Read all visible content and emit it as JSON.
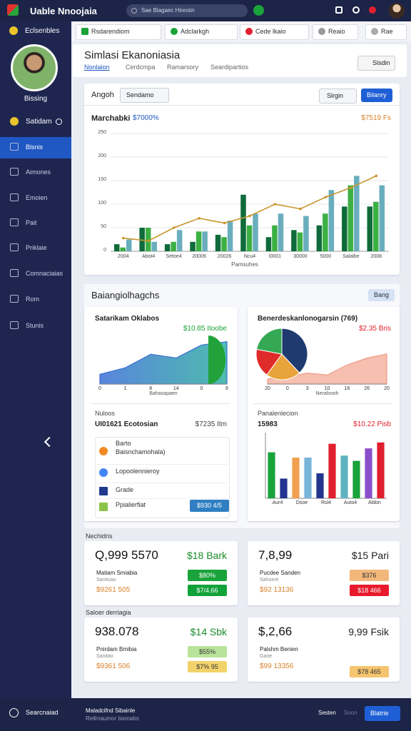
{
  "topbar": {
    "title": "Uable Nnoojaia",
    "search": "Sae Blagaec Hireoiin"
  },
  "sidebar": {
    "brand": "Eclsenbles",
    "user": "Bissing",
    "status": "Satidam",
    "menu": [
      "Blsnis",
      "Aimones",
      "Emoien",
      "Pait",
      "Priklaie",
      "Comnaciaias",
      "Rom",
      "Stunis"
    ],
    "footer": "Searcnaiad"
  },
  "tabs": [
    "Rsdarendiom",
    "Adclarkgh",
    "Cede lkaio",
    "Reaio",
    "Rae"
  ],
  "header": {
    "title": "Simlasi Ekanoniasia",
    "tabs": [
      "Nonlaion",
      "Cerdcmpa",
      "Ramarsory",
      "Seardipartios"
    ],
    "button": "Slsdin"
  },
  "main_chart": {
    "type": "bar",
    "toolbar": {
      "label": "Angoh",
      "dropdown": "Sendamo",
      "filter": "Slrgin",
      "button": "Bilanry"
    },
    "title": "Marchabki",
    "subtitle": "$7000%",
    "annotation": "$7519 Fs",
    "x_title": "Pamsuhes",
    "categories": [
      "2004",
      "Abot4",
      "Setoe4",
      "20009",
      "20026",
      "Ncu4",
      "l0001",
      "30000",
      "5000",
      "Salalbe",
      "2008"
    ],
    "ylim": [
      0,
      250
    ],
    "yticks": [
      0,
      50,
      100,
      150,
      200,
      250
    ],
    "grid": true,
    "series": [
      {
        "type": "bar",
        "color": "#0f6b3a",
        "values": [
          15,
          50,
          15,
          20,
          35,
          120,
          30,
          45,
          55,
          95,
          95
        ]
      },
      {
        "type": "bar",
        "color": "#3cb043",
        "values": [
          8,
          50,
          20,
          42,
          30,
          55,
          55,
          40,
          80,
          140,
          105
        ]
      },
      {
        "type": "bar",
        "color": "#6aaebd",
        "values": [
          25,
          20,
          45,
          42,
          65,
          80,
          80,
          75,
          130,
          160,
          140
        ]
      },
      {
        "type": "line",
        "color": "#c9962e",
        "values": [
          28,
          22,
          50,
          70,
          60,
          75,
          100,
          90,
          115,
          135,
          160
        ]
      }
    ]
  },
  "overview": {
    "title": "Baiangiolhagchs",
    "button": "Bang",
    "left": {
      "title": "Satarikam Oklabos",
      "value": "$10.85 Itoobe",
      "chart": {
        "type": "area",
        "categories": [
          "0",
          "1",
          "8",
          "14",
          "0",
          "8"
        ],
        "x_title": "Bahasapaen",
        "values": [
          18,
          30,
          55,
          48,
          72,
          78
        ],
        "ylim": [
          0,
          100
        ],
        "color": "#3b6fd6"
      }
    },
    "right": {
      "title": "Benerdeskanlonogarsin (769)",
      "value": "$2.35 Bris",
      "pie": {
        "type": "pie",
        "values": [
          38,
          22,
          18,
          22
        ],
        "colors": [
          "#1f3a6e",
          "#e8a33a",
          "#e02b2b",
          "#34a853"
        ]
      },
      "chart": {
        "type": "area",
        "categories": [
          "20",
          "0",
          "3",
          "10",
          "16",
          "26",
          "20"
        ],
        "x_title": "Neralsooh",
        "values": [
          10,
          14,
          22,
          18,
          38,
          52,
          60
        ],
        "ylim": [
          0,
          100
        ],
        "color": "#ef9a85"
      }
    },
    "list": {
      "header": "Nuloos",
      "name": "UI01621 Ecotosian",
      "amount": "$7235 Itm",
      "items": [
        "Barto",
        "Baisnchamohala)",
        "Lopoolennieroy",
        "Grade",
        "Ppialierfiat"
      ],
      "button": "$930 4/5"
    },
    "bars": {
      "header": "Panalenlecion",
      "value": "15983",
      "amount": "$10.22 Pisb",
      "chart": {
        "type": "bar",
        "categories": [
          "Aur4",
          null,
          "Dsoe",
          null,
          "Rsl4",
          null,
          "Auto4",
          null,
          "Aldon",
          null
        ],
        "values": [
          70,
          30,
          62,
          62,
          38,
          83,
          65,
          57,
          76,
          85
        ],
        "colors": [
          "#1aa33a",
          "#23358f",
          "#f0a050",
          "#79b4d9",
          "#23358f",
          "#e0202e",
          "#5fb3c0",
          "#1aa33a",
          "#8a4fc9",
          "#e0202e"
        ],
        "ylim": [
          0,
          100
        ]
      }
    }
  },
  "kpis": [
    {
      "title": "Nechidris",
      "cards": [
        {
          "value": "Q,999 5570",
          "delta": "$18 Bark",
          "name": "Matiam Smiabia",
          "sub": "Sanitoao",
          "amount": "$9261 505",
          "badges": [
            "$80%",
            "$7/4.66"
          ],
          "badge_colors": [
            "#1aa33a",
            "#12a23a"
          ]
        },
        {
          "value": "7,8,99",
          "delta": "$15 Pari",
          "name": "Pucdee Sanden",
          "sub": "Sahoere",
          "amount": "$92 13136",
          "badges": [
            "$376",
            "$18 466"
          ],
          "badge_colors": [
            "#f2b77a",
            "#e8192c"
          ]
        }
      ]
    },
    {
      "title": "Saloer derriagia",
      "cards": [
        {
          "value": "938.078",
          "delta": "$14 Sbk",
          "name": "Pnirdam Bmibia",
          "sub": "Sanitao",
          "amount": "$9361 506",
          "badges": [
            "$55%",
            "$7% 95"
          ],
          "badge_colors": [
            "#b8e39a",
            "#f2d36b"
          ]
        },
        {
          "value": "$,2,66",
          "delta": "9,99 Fsik",
          "name": "Palshm Benien",
          "sub": "Gaoe",
          "amount": "$99 13356",
          "badges": [
            "$78 465"
          ],
          "badge_colors": [
            "#f5c46f"
          ]
        }
      ]
    }
  ],
  "footer": {
    "text1": "Maladcifnd Sibainle",
    "text2": "Rellmaumor lsionabs",
    "link1": "Sesten",
    "link2": "Soon",
    "button": "Blatrie"
  }
}
